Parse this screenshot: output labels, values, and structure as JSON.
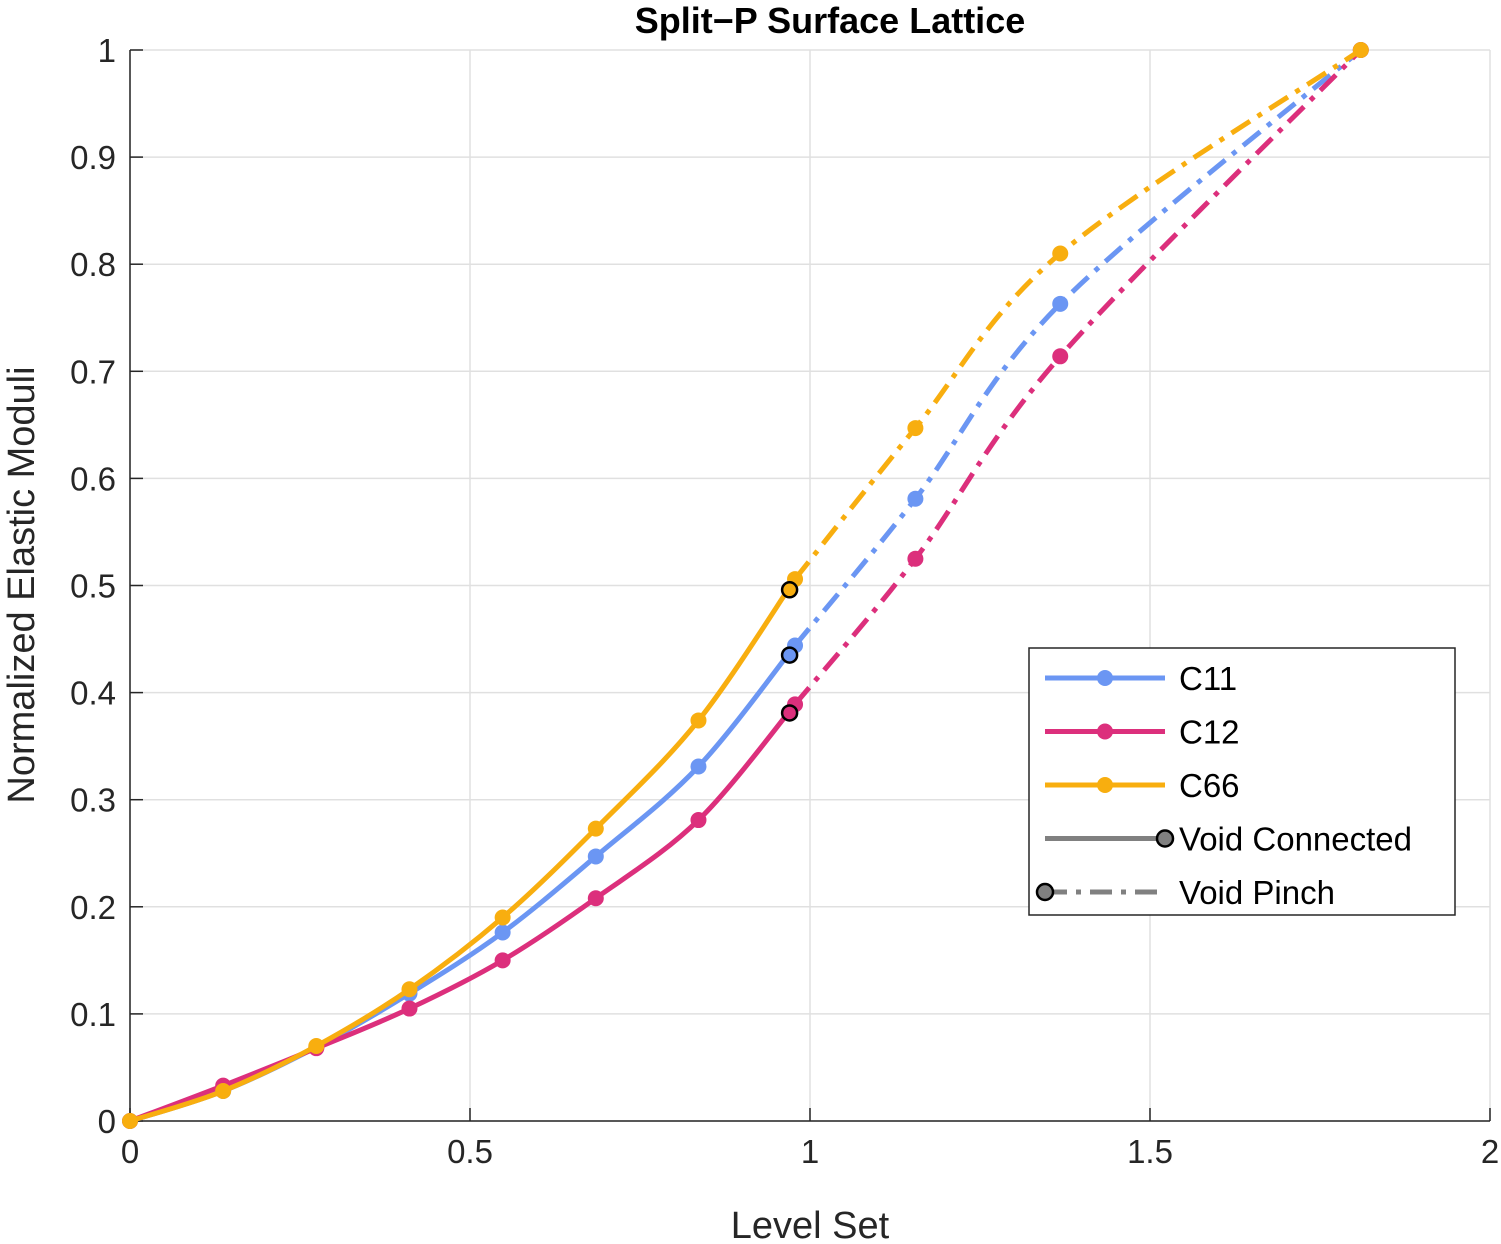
{
  "chart_data": {
    "type": "line",
    "title": "Split−P Surface Lattice",
    "xlabel": "Level Set",
    "ylabel": "Normalized Elastic Moduli",
    "xlim": [
      0,
      2
    ],
    "ylim": [
      0,
      1
    ],
    "xticks": [
      "0",
      "0.5",
      "1",
      "1.5",
      "2"
    ],
    "yticks": [
      "0",
      "0.1",
      "0.2",
      "0.3",
      "0.4",
      "0.5",
      "0.6",
      "0.7",
      "0.8",
      "0.9",
      "1"
    ],
    "grid": true,
    "legend_position": "center-right",
    "series": [
      {
        "name": "C11",
        "color": "#6b96f3",
        "connected": {
          "x": [
            0,
            0.137,
            0.274,
            0.411,
            0.548,
            0.685,
            0.836,
            0.978
          ],
          "y": [
            0,
            0.028,
            0.069,
            0.119,
            0.176,
            0.247,
            0.331,
            0.444
          ]
        },
        "pinch": {
          "x": [
            0.978,
            1.155,
            1.368,
            1.81
          ],
          "y": [
            0.444,
            0.581,
            0.763,
            1.0
          ]
        },
        "transition_marker": {
          "x": 0.97,
          "y": 0.435
        }
      },
      {
        "name": "C12",
        "color": "#dc2f7c",
        "connected": {
          "x": [
            0,
            0.137,
            0.274,
            0.411,
            0.548,
            0.685,
            0.836,
            0.978
          ],
          "y": [
            0,
            0.033,
            0.068,
            0.105,
            0.15,
            0.208,
            0.281,
            0.389
          ]
        },
        "pinch": {
          "x": [
            0.978,
            1.155,
            1.368,
            1.81
          ],
          "y": [
            0.389,
            0.525,
            0.714,
            1.0
          ]
        },
        "transition_marker": {
          "x": 0.97,
          "y": 0.381
        }
      },
      {
        "name": "C66",
        "color": "#f8ae0f",
        "connected": {
          "x": [
            0,
            0.137,
            0.274,
            0.411,
            0.548,
            0.685,
            0.836,
            0.978
          ],
          "y": [
            0,
            0.028,
            0.07,
            0.123,
            0.19,
            0.273,
            0.374,
            0.506
          ]
        },
        "pinch": {
          "x": [
            0.978,
            1.155,
            1.368,
            1.81
          ],
          "y": [
            0.506,
            0.647,
            0.81,
            1.0
          ]
        },
        "transition_marker": {
          "x": 0.97,
          "y": 0.496
        }
      }
    ],
    "legend": [
      {
        "label": "C11",
        "color": "#6b96f3",
        "style": "solid",
        "marker": "dot-right"
      },
      {
        "label": "C12",
        "color": "#dc2f7c",
        "style": "solid",
        "marker": "dot-right"
      },
      {
        "label": "C66",
        "color": "#f8ae0f",
        "style": "solid",
        "marker": "dot-right"
      },
      {
        "label": "Void Connected",
        "color": "#808080",
        "style": "solid",
        "marker": "circle-right"
      },
      {
        "label": "Void Pinch",
        "color": "#808080",
        "style": "dashdot",
        "marker": "circle-left"
      }
    ]
  }
}
